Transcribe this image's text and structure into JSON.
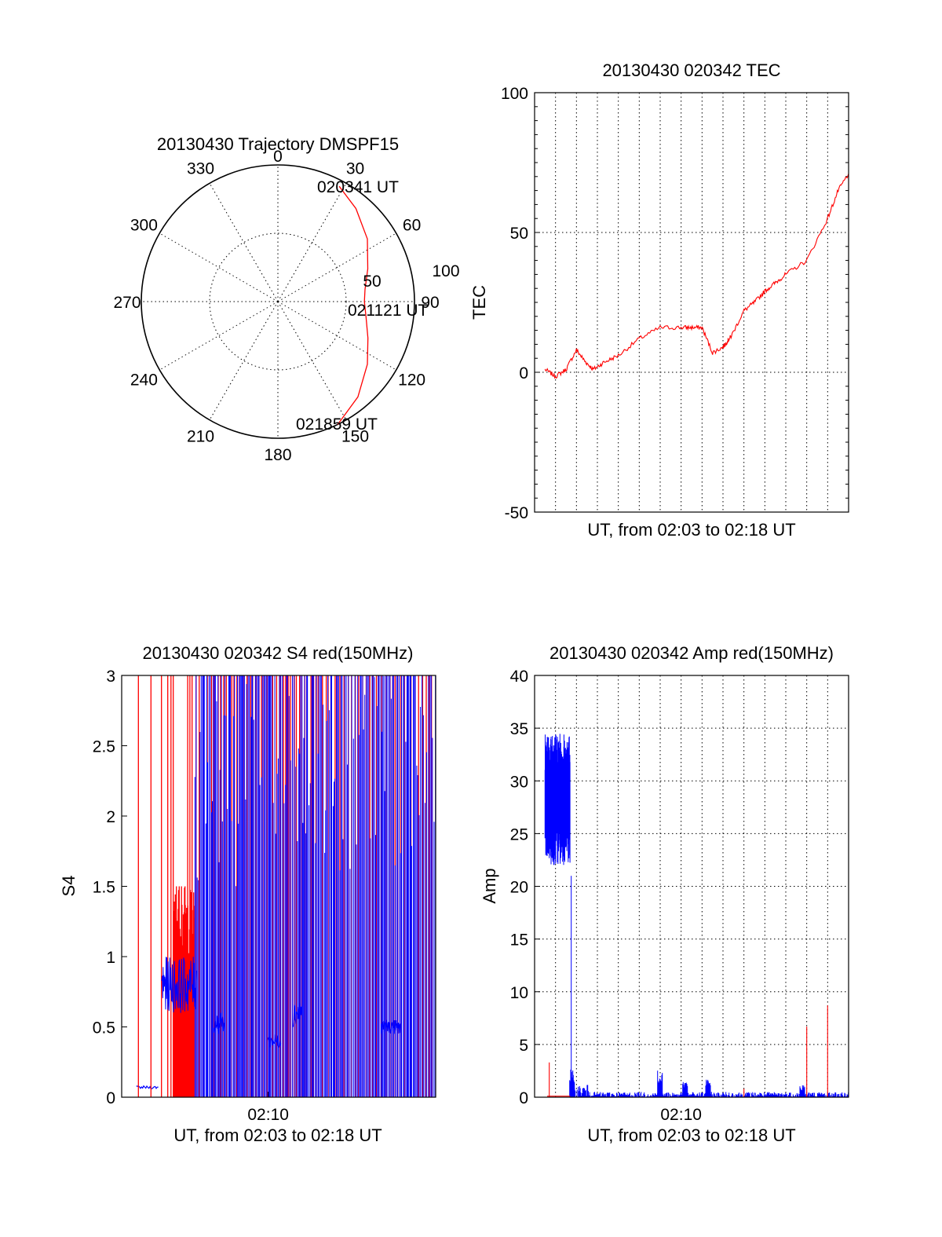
{
  "chart_data": [
    {
      "type": "polar",
      "title": "20130430 Trajectory DMSPF15",
      "angle_ticks": [
        "0",
        "30",
        "60",
        "90",
        "120",
        "150",
        "180",
        "210",
        "240",
        "270",
        "300",
        "330"
      ],
      "radial_ticks": [
        "50",
        "100"
      ],
      "track_labels": [
        "020341 UT",
        "021121 UT",
        "021859 UT"
      ],
      "track": {
        "azimuth_deg": [
          28,
          40,
          55,
          70,
          82,
          90,
          100,
          112,
          125,
          140,
          154
        ],
        "zenith_deg": [
          86,
          80,
          72,
          63,
          58,
          57,
          59,
          64,
          72,
          82,
          90
        ]
      }
    },
    {
      "type": "line",
      "title": "20130430 020342 TEC",
      "xlabel": "UT, from 02:03 to 02:18 UT",
      "ylabel": "TEC",
      "ylim": [
        -50,
        100
      ],
      "yticks": [
        "-50",
        "0",
        "50",
        "100"
      ],
      "xlim_min": [
        0,
        15
      ],
      "series": [
        {
          "color": "#ff0000",
          "x": [
            0.5,
            1.0,
            1.5,
            2.0,
            2.4,
            2.8,
            3.3,
            4.0,
            5.0,
            6.0,
            7.0,
            7.5,
            8.0,
            8.5,
            9.0,
            9.2,
            9.4,
            10.0,
            10.5,
            11.0,
            11.5,
            12.0,
            13.0,
            14.0,
            14.5,
            15.0
          ],
          "y": [
            1,
            -1.5,
            1,
            8,
            4,
            1,
            3.5,
            6,
            12,
            16,
            16,
            16,
            16,
            7,
            9,
            11,
            13,
            22,
            25,
            29,
            32,
            35,
            40,
            55,
            65,
            71
          ]
        }
      ]
    },
    {
      "type": "line",
      "title": "20130430 020342 S4 red(150MHz)",
      "xlabel": "UT, from 02:03 to 02:18 UT",
      "ylabel": "S4",
      "ylim": [
        0,
        3
      ],
      "yticks": [
        "0",
        "0.5",
        "1",
        "1.5",
        "2",
        "2.5",
        "3"
      ],
      "xtick_labels": [
        "02:10"
      ],
      "xlim_min": [
        0,
        15
      ],
      "series": [
        {
          "color": "#ff0000",
          "description": "dense spikes saturating to 3 and 1.5"
        },
        {
          "color": "#0000ff",
          "description": "dense spikes with envelope between 0.05 and 3"
        }
      ]
    },
    {
      "type": "line",
      "title": "20130430 020342 Amp red(150MHz)",
      "xlabel": "UT, from 02:03 to 02:18 UT",
      "ylabel": "Amp",
      "ylim": [
        0,
        40
      ],
      "yticks": [
        "0",
        "5",
        "10",
        "15",
        "20",
        "25",
        "30",
        "35",
        "40"
      ],
      "xtick_labels": [
        "02:10"
      ],
      "xlim_min": [
        0,
        15
      ],
      "series": [
        {
          "color": "#0000ff",
          "segments": [
            {
              "x": [
                0.5,
                1.7
              ],
              "low": 22,
              "high": 34
            },
            {
              "x": [
                1.7,
                15.0
              ],
              "low": 0,
              "high": 1.5
            }
          ],
          "bursts": [
            {
              "x": 1.8,
              "y": 2.8
            },
            {
              "x": 6.0,
              "y": 2.7
            },
            {
              "x": 7.2,
              "y": 1.6
            },
            {
              "x": 8.3,
              "y": 1.8
            },
            {
              "x": 12.8,
              "y": 1.2
            }
          ]
        },
        {
          "color": "#ff0000",
          "spikes": [
            {
              "x": 0.7,
              "y": 3.3
            },
            {
              "x": 10.0,
              "y": 0.8
            },
            {
              "x": 13.0,
              "y": 6.7
            },
            {
              "x": 14.0,
              "y": 8.7
            }
          ]
        }
      ]
    }
  ]
}
